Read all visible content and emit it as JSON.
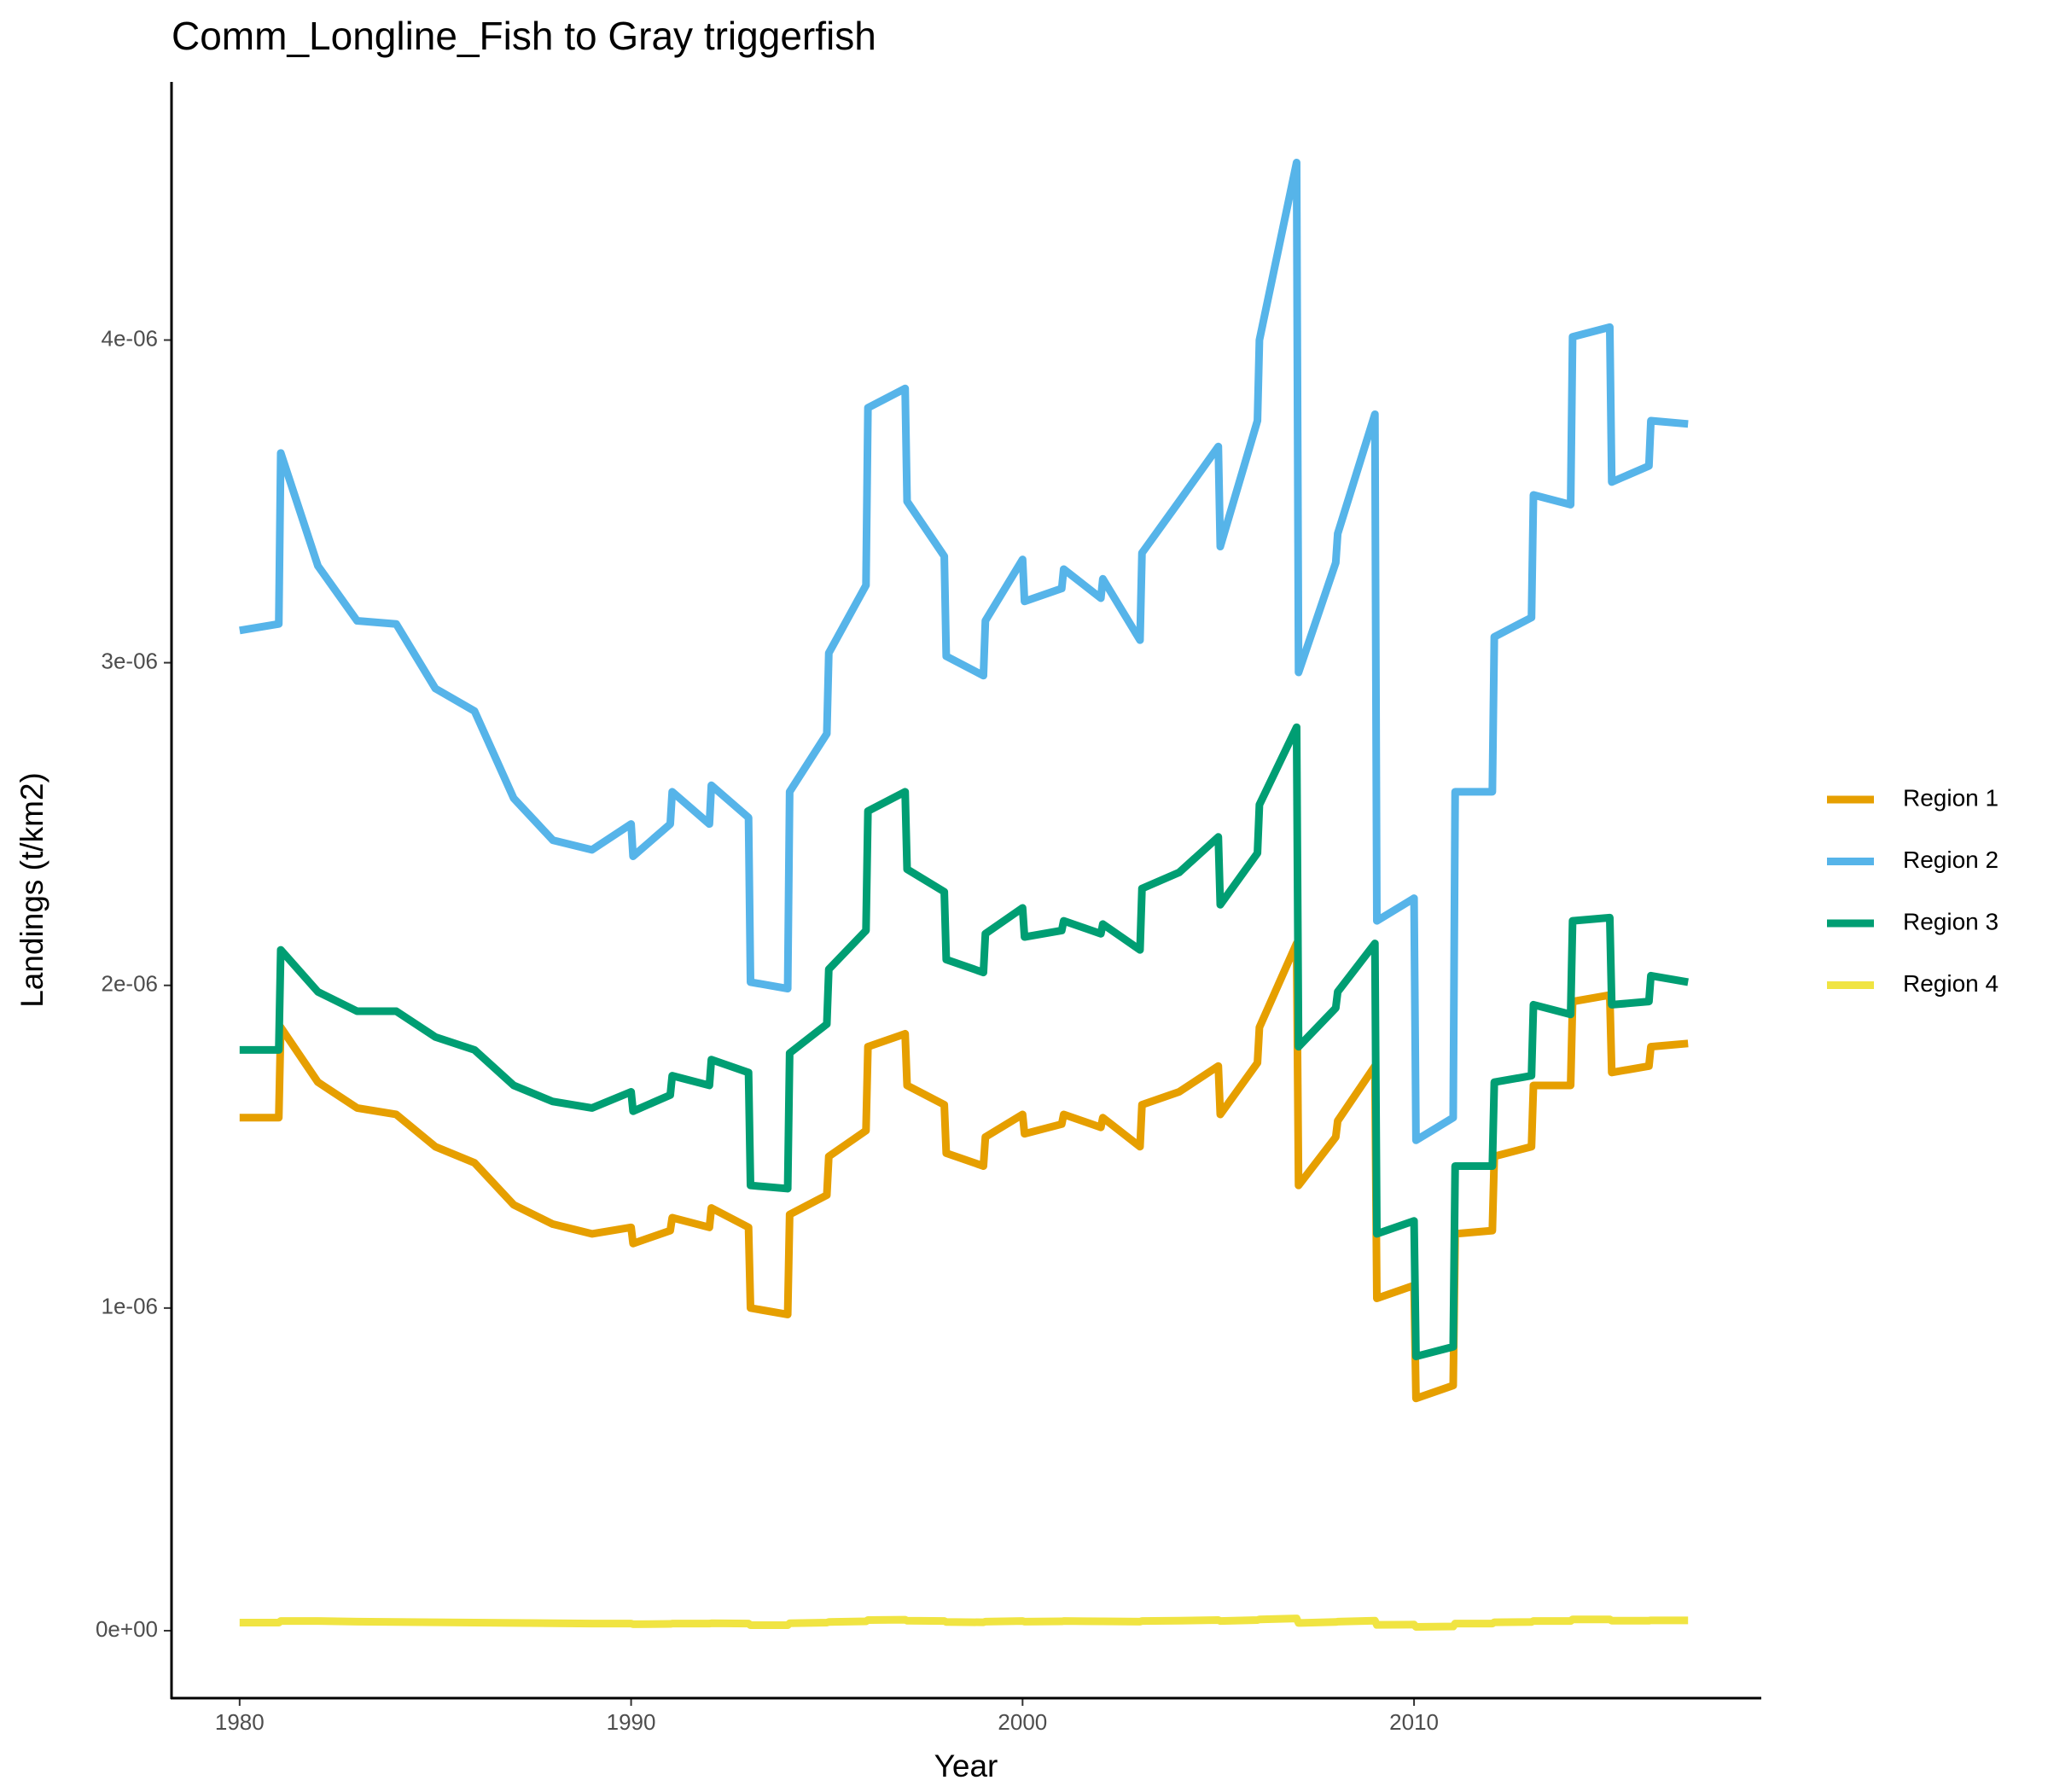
{
  "chart_data": {
    "type": "line",
    "title": "Comm_Longline_Fish to Gray triggerfish",
    "x_label": "Year",
    "y_label": "Landings (t/km2)",
    "legend": "right",
    "x": [
      1980,
      1981,
      1981.05,
      1982,
      1983,
      1984,
      1985,
      1986,
      1987,
      1988,
      1989,
      1990,
      1990.05,
      1991,
      1991.05,
      1992,
      1992.05,
      1993,
      1993.05,
      1994,
      1994.05,
      1995,
      1995.05,
      1996,
      1996.05,
      1997,
      1997.05,
      1998,
      1998.05,
      1999,
      1999.05,
      2000,
      2000.05,
      2001,
      2001.05,
      2002,
      2002.05,
      2003,
      2003.05,
      2004,
      2005,
      2005.05,
      2006,
      2006.05,
      2007,
      2007.05,
      2008,
      2008.05,
      2009,
      2009.05,
      2010,
      2010.05,
      2011,
      2011.05,
      2012,
      2012.05,
      2013,
      2013.05,
      2014,
      2014.05,
      2015,
      2015.05,
      2016,
      2016.05,
      2017
    ],
    "series": [
      {
        "name": "Region 1",
        "color": "#e69f00",
        "values": [
          1.59e-06,
          1.59e-06,
          1.87e-06,
          1.7e-06,
          1.62e-06,
          1.6e-06,
          1.5e-06,
          1.45e-06,
          1.32e-06,
          1.26e-06,
          1.23e-06,
          1.25e-06,
          1.2e-06,
          1.24e-06,
          1.28e-06,
          1.25e-06,
          1.31e-06,
          1.25e-06,
          1e-06,
          9.8e-07,
          1.29e-06,
          1.35e-06,
          1.47e-06,
          1.55e-06,
          1.81e-06,
          1.85e-06,
          1.69e-06,
          1.63e-06,
          1.48e-06,
          1.44e-06,
          1.53e-06,
          1.6e-06,
          1.54e-06,
          1.57e-06,
          1.6e-06,
          1.56e-06,
          1.59e-06,
          1.5e-06,
          1.63e-06,
          1.67e-06,
          1.75e-06,
          1.6e-06,
          1.76e-06,
          1.87e-06,
          2.13e-06,
          1.38e-06,
          1.53e-06,
          1.58e-06,
          1.75e-06,
          1.03e-06,
          1.07e-06,
          7.2e-07,
          7.6e-07,
          1.23e-06,
          1.24e-06,
          1.47e-06,
          1.5e-06,
          1.69e-06,
          1.69e-06,
          1.95e-06,
          1.97e-06,
          1.73e-06,
          1.75e-06,
          1.81e-06,
          1.82e-06
        ]
      },
      {
        "name": "Region 2",
        "color": "#56b4e9",
        "values": [
          3.1e-06,
          3.12e-06,
          3.65e-06,
          3.3e-06,
          3.13e-06,
          3.12e-06,
          2.92e-06,
          2.85e-06,
          2.58e-06,
          2.45e-06,
          2.42e-06,
          2.5e-06,
          2.4e-06,
          2.5e-06,
          2.6e-06,
          2.5e-06,
          2.62e-06,
          2.52e-06,
          2.01e-06,
          1.99e-06,
          2.6e-06,
          2.78e-06,
          3.03e-06,
          3.24e-06,
          3.79e-06,
          3.85e-06,
          3.5e-06,
          3.33e-06,
          3.02e-06,
          2.96e-06,
          3.13e-06,
          3.32e-06,
          3.19e-06,
          3.23e-06,
          3.29e-06,
          3.2e-06,
          3.26e-06,
          3.07e-06,
          3.34e-06,
          3.5e-06,
          3.67e-06,
          3.36e-06,
          3.75e-06,
          4e-06,
          4.55e-06,
          2.97e-06,
          3.31e-06,
          3.4e-06,
          3.77e-06,
          2.2e-06,
          2.27e-06,
          1.52e-06,
          1.59e-06,
          2.6e-06,
          2.6e-06,
          3.08e-06,
          3.14e-06,
          3.52e-06,
          3.49e-06,
          4.01e-06,
          4.04e-06,
          3.56e-06,
          3.61e-06,
          3.75e-06,
          3.74e-06
        ]
      },
      {
        "name": "Region 3",
        "color": "#009e73",
        "values": [
          1.8e-06,
          1.8e-06,
          2.11e-06,
          1.98e-06,
          1.92e-06,
          1.92e-06,
          1.84e-06,
          1.8e-06,
          1.69e-06,
          1.64e-06,
          1.62e-06,
          1.67e-06,
          1.61e-06,
          1.66e-06,
          1.72e-06,
          1.69e-06,
          1.77e-06,
          1.73e-06,
          1.38e-06,
          1.37e-06,
          1.79e-06,
          1.88e-06,
          2.05e-06,
          2.17e-06,
          2.54e-06,
          2.6e-06,
          2.36e-06,
          2.29e-06,
          2.08e-06,
          2.04e-06,
          2.16e-06,
          2.24e-06,
          2.15e-06,
          2.17e-06,
          2.2e-06,
          2.16e-06,
          2.19e-06,
          2.11e-06,
          2.3e-06,
          2.35e-06,
          2.46e-06,
          2.25e-06,
          2.41e-06,
          2.56e-06,
          2.8e-06,
          1.81e-06,
          1.93e-06,
          1.98e-06,
          2.13e-06,
          1.23e-06,
          1.27e-06,
          8.5e-07,
          8.8e-07,
          1.44e-06,
          1.44e-06,
          1.7e-06,
          1.72e-06,
          1.94e-06,
          1.91e-06,
          2.2e-06,
          2.21e-06,
          1.94e-06,
          1.95e-06,
          2.03e-06,
          2.01e-06
        ]
      },
      {
        "name": "Region 4",
        "color": "#f0e442",
        "values": [
          2.5e-08,
          2.5e-08,
          3e-08,
          3e-08,
          2.8e-08,
          2.7e-08,
          2.6e-08,
          2.5e-08,
          2.4e-08,
          2.3e-08,
          2.2e-08,
          2.2e-08,
          2e-08,
          2.1e-08,
          2.2e-08,
          2.2e-08,
          2.3e-08,
          2.2e-08,
          1.7e-08,
          1.7e-08,
          2.3e-08,
          2.5e-08,
          2.7e-08,
          2.9e-08,
          3.3e-08,
          3.4e-08,
          3.1e-08,
          3e-08,
          2.7e-08,
          2.6e-08,
          2.8e-08,
          3e-08,
          2.8e-08,
          2.9e-08,
          3e-08,
          2.9e-08,
          2.9e-08,
          2.8e-08,
          3e-08,
          3.1e-08,
          3.3e-08,
          3e-08,
          3.3e-08,
          3.5e-08,
          3.8e-08,
          2.4e-08,
          2.7e-08,
          2.8e-08,
          3.1e-08,
          1.8e-08,
          1.9e-08,
          1.2e-08,
          1.3e-08,
          2.2e-08,
          2.2e-08,
          2.6e-08,
          2.7e-08,
          3e-08,
          3e-08,
          3.5e-08,
          3.5e-08,
          3.1e-08,
          3.1e-08,
          3.2e-08,
          3.2e-08
        ]
      }
    ],
    "xlim": [
      1978.26,
      2018.87
    ],
    "ylim": [
      -2.09e-07,
      4.8e-06
    ],
    "xticks": [
      1980,
      1990,
      2000,
      2010
    ],
    "yticks": [
      {
        "value": 0,
        "label": "0e+00"
      },
      {
        "value": 1e-06,
        "label": "1e-06"
      },
      {
        "value": 2e-06,
        "label": "2e-06"
      },
      {
        "value": 3e-06,
        "label": "3e-06"
      },
      {
        "value": 4e-06,
        "label": "4e-06"
      }
    ],
    "grid": false
  }
}
